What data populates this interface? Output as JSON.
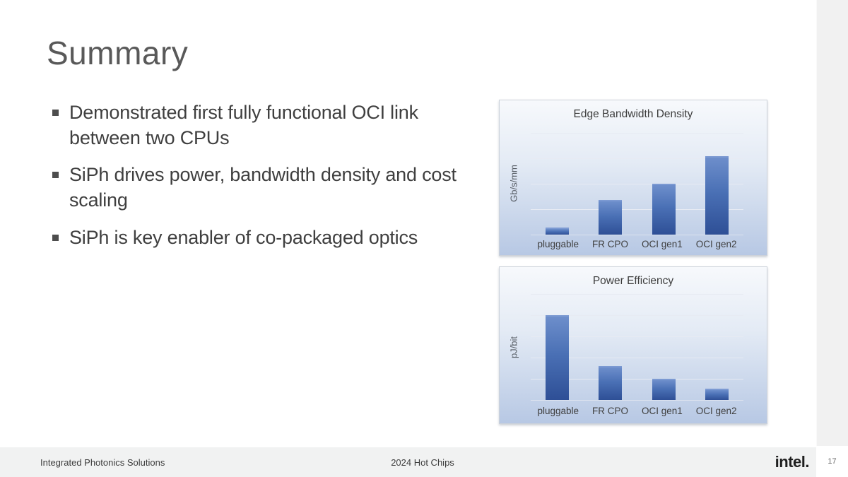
{
  "slide": {
    "title": "Summary",
    "bullets": [
      "Demonstrated first fully functional OCI link between two CPUs",
      "SiPh drives power, bandwidth density and cost scaling",
      "SiPh is key enabler of co-packaged optics"
    ],
    "footer": {
      "left": "Integrated Photonics Solutions",
      "center": "2024 Hot Chips",
      "logo": "intel.",
      "page_number": "17"
    }
  },
  "chart_data": [
    {
      "type": "bar",
      "title": "Edge Bandwidth Density",
      "ylabel": "Gb/s/mm",
      "xlabel": "",
      "categories": [
        "pluggable",
        "FR CPO",
        "OCI gen1",
        "OCI gen2"
      ],
      "values_relative": [
        0.07,
        0.34,
        0.5,
        0.77
      ],
      "value_axis_ticks": "none shown (unlabeled relative scale, 0-1 of plot height)",
      "gridlines": 5,
      "grid": true,
      "legend": false
    },
    {
      "type": "bar",
      "title": "Power Efficiency",
      "ylabel": "pJ/bit",
      "xlabel": "",
      "categories": [
        "pluggable",
        "FR CPO",
        "OCI gen1",
        "OCI gen2"
      ],
      "values_relative": [
        0.8,
        0.32,
        0.2,
        0.11
      ],
      "value_axis_ticks": "none shown (unlabeled relative scale, 0-1 of plot height)",
      "gridlines": 6,
      "grid": true,
      "legend": false
    }
  ],
  "colors": {
    "bar_top": "#6d8ecb",
    "bar_mid": "#4a70b5",
    "bar_bottom": "#2e4f96",
    "chart_bg_top": "#f7f9fc",
    "chart_bg_bottom": "#b7c8e4",
    "footer_bg": "#f1f2f2",
    "title_text": "#595959",
    "body_text": "#3f3f3f"
  }
}
